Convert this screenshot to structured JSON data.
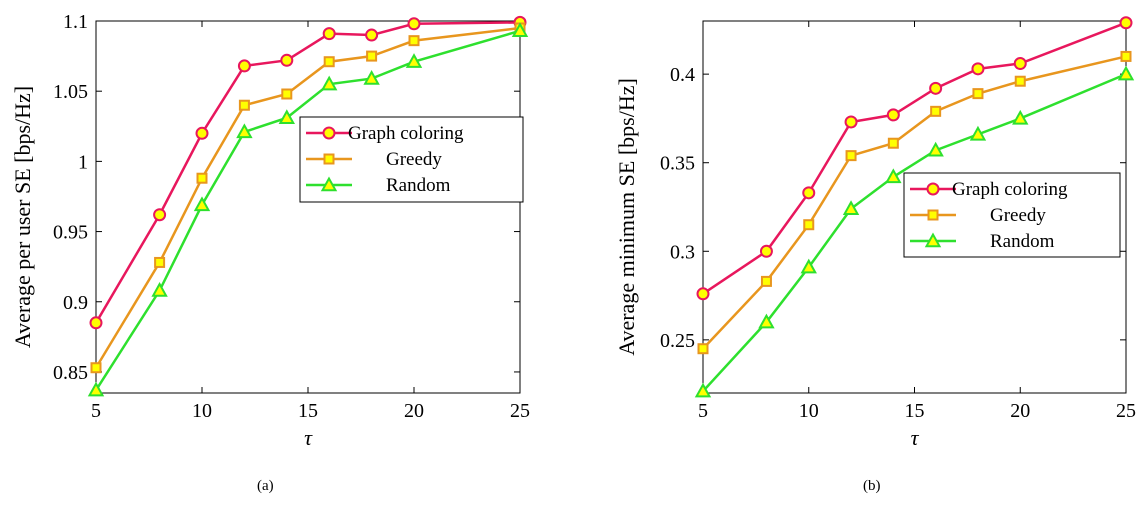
{
  "colors": {
    "graph_coloring": "#e8175d",
    "greedy": "#e8961e",
    "random": "#2ee02e",
    "marker_fill": "#ffff00"
  },
  "chart_data": [
    {
      "type": "line",
      "caption": "(a)",
      "xlabel": "τ",
      "ylabel": "Average per user SE [bps/Hz]",
      "xlim": [
        5,
        25
      ],
      "ylim": [
        0.835,
        1.1
      ],
      "xticks": [
        "5",
        "10",
        "15",
        "20",
        "25"
      ],
      "yticks": [
        "0.85",
        "0.9",
        "0.95",
        "1",
        "1.05",
        "1.1"
      ],
      "grid": false,
      "legend_position": "center-right",
      "x": [
        5,
        8,
        10,
        12,
        14,
        16,
        18,
        20,
        25
      ],
      "series": [
        {
          "name": "Graph coloring",
          "marker": "circle",
          "values": [
            0.885,
            0.962,
            1.02,
            1.068,
            1.072,
            1.091,
            1.09,
            1.098,
            1.099
          ]
        },
        {
          "name": "Greedy",
          "marker": "square",
          "values": [
            0.853,
            0.928,
            0.988,
            1.04,
            1.048,
            1.071,
            1.075,
            1.086,
            1.095
          ]
        },
        {
          "name": "Random",
          "marker": "triangle",
          "values": [
            0.837,
            0.908,
            0.969,
            1.021,
            1.031,
            1.055,
            1.059,
            1.071,
            1.093
          ]
        }
      ]
    },
    {
      "type": "line",
      "caption": "(b)",
      "xlabel": "τ",
      "ylabel": "Average minimum SE [bps/Hz]",
      "xlim": [
        5,
        25
      ],
      "ylim": [
        0.22,
        0.43
      ],
      "xticks": [
        "5",
        "10",
        "15",
        "20",
        "25"
      ],
      "yticks": [
        "0.25",
        "0.3",
        "0.35",
        "0.4"
      ],
      "grid": false,
      "legend_position": "center-right",
      "x": [
        5,
        8,
        10,
        12,
        14,
        16,
        18,
        20,
        25
      ],
      "series": [
        {
          "name": "Graph coloring",
          "marker": "circle",
          "values": [
            0.276,
            0.3,
            0.333,
            0.373,
            0.377,
            0.392,
            0.403,
            0.406,
            0.429
          ]
        },
        {
          "name": "Greedy",
          "marker": "square",
          "values": [
            0.245,
            0.283,
            0.315,
            0.354,
            0.361,
            0.379,
            0.389,
            0.396,
            0.41
          ]
        },
        {
          "name": "Random",
          "marker": "triangle",
          "values": [
            0.221,
            0.26,
            0.291,
            0.324,
            0.342,
            0.357,
            0.366,
            0.375,
            0.4
          ]
        }
      ]
    }
  ]
}
